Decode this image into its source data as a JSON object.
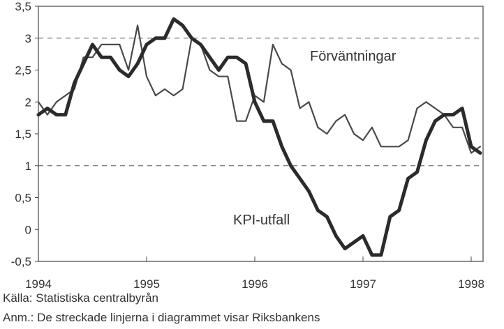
{
  "chart_data": {
    "type": "line",
    "x_ticks": [
      "1994",
      "1995",
      "1996",
      "1997",
      "1998"
    ],
    "y_ticks": [
      "-0,5",
      "0",
      "0,5",
      "1",
      "1,5",
      "2",
      "2,5",
      "3",
      "3,5"
    ],
    "ylim": [
      -0.5,
      3.5
    ],
    "xlim": [
      1994.0,
      1998.1
    ],
    "reference_lines": [
      1,
      3
    ],
    "annotations": [
      {
        "text": "Förväntningar",
        "series": "expectations"
      },
      {
        "text": "KPI-utfall",
        "series": "cpi"
      }
    ],
    "series": [
      {
        "id": "expectations",
        "x": [
          1994.0,
          1994.083,
          1994.167,
          1994.333,
          1994.417,
          1994.5,
          1994.583,
          1994.667,
          1994.75,
          1994.833,
          1994.917,
          1995.0,
          1995.083,
          1995.167,
          1995.25,
          1995.333,
          1995.417,
          1995.5,
          1995.583,
          1995.667,
          1995.75,
          1995.833,
          1995.917,
          1996.0,
          1996.083,
          1996.167,
          1996.25,
          1996.333,
          1996.417,
          1996.5,
          1996.583,
          1996.667,
          1996.75,
          1996.833,
          1996.917,
          1997.0,
          1997.083,
          1997.167,
          1997.25,
          1997.333,
          1997.417,
          1997.5,
          1997.583,
          1997.667,
          1997.75,
          1997.833,
          1997.917,
          1998.0,
          1998.083
        ],
        "values": [
          2.0,
          1.8,
          2.0,
          2.2,
          2.7,
          2.7,
          2.9,
          2.9,
          2.9,
          2.5,
          3.2,
          2.4,
          2.1,
          2.2,
          2.1,
          2.2,
          3.0,
          2.9,
          2.5,
          2.4,
          2.4,
          1.7,
          1.7,
          2.1,
          2.0,
          2.9,
          2.6,
          2.5,
          1.9,
          2.0,
          1.6,
          1.5,
          1.7,
          1.8,
          1.5,
          1.4,
          1.6,
          1.3,
          1.3,
          1.3,
          1.4,
          1.9,
          2.0,
          1.9,
          1.8,
          1.6,
          1.6,
          1.2,
          1.3
        ]
      },
      {
        "id": "cpi",
        "x": [
          1994.0,
          1994.083,
          1994.167,
          1994.25,
          1994.333,
          1994.417,
          1994.5,
          1994.583,
          1994.667,
          1994.75,
          1994.833,
          1994.917,
          1995.0,
          1995.083,
          1995.167,
          1995.25,
          1995.333,
          1995.417,
          1995.5,
          1995.583,
          1995.667,
          1995.75,
          1995.833,
          1995.917,
          1996.0,
          1996.083,
          1996.167,
          1996.25,
          1996.333,
          1996.417,
          1996.5,
          1996.583,
          1996.667,
          1996.75,
          1996.833,
          1996.917,
          1997.0,
          1997.083,
          1997.167,
          1997.25,
          1997.333,
          1997.417,
          1997.5,
          1997.583,
          1997.667,
          1997.75,
          1997.833,
          1997.917,
          1998.0,
          1998.083
        ],
        "values": [
          1.8,
          1.9,
          1.8,
          1.8,
          2.3,
          2.6,
          2.9,
          2.7,
          2.7,
          2.5,
          2.4,
          2.6,
          2.9,
          3.0,
          3.0,
          3.3,
          3.2,
          3.0,
          2.9,
          2.7,
          2.5,
          2.7,
          2.7,
          2.6,
          2.0,
          1.7,
          1.7,
          1.3,
          1.0,
          0.8,
          0.6,
          0.3,
          0.2,
          -0.1,
          -0.3,
          -0.2,
          -0.1,
          -0.4,
          -0.4,
          0.2,
          0.3,
          0.8,
          0.9,
          1.4,
          1.7,
          1.8,
          1.8,
          1.9,
          1.3,
          1.2
        ]
      }
    ]
  },
  "notes": {
    "source": "Källa: Statistiska centralbyrån",
    "remark": "Anm.: De streckade linjerna i diagrammet visar Riksbankens"
  }
}
